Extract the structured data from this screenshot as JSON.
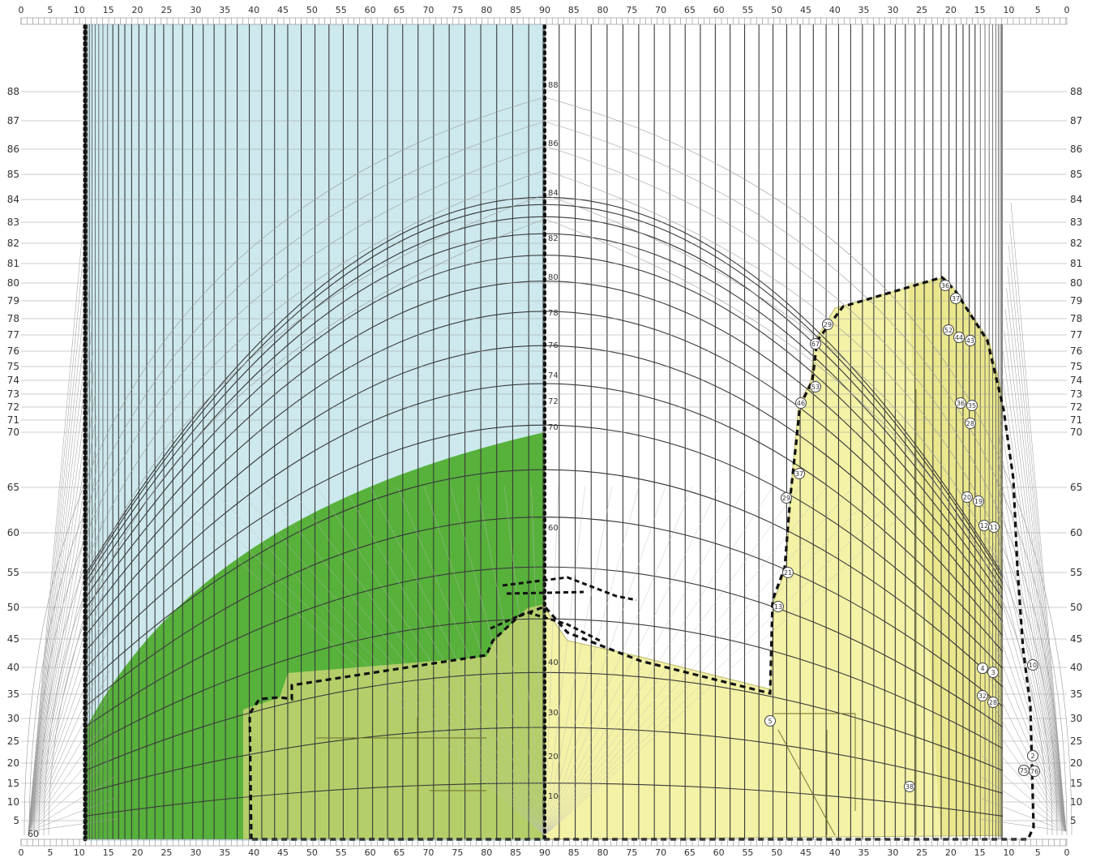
{
  "colors": {
    "background": "#ffffff",
    "sky_cyan": "#cde9ee",
    "green_zone": "#57b13b",
    "olive_zone": "#b4cf6a",
    "yellow_zone": "#f3f2a6",
    "grid_dark": "#3a3a3a",
    "grid_light": "#9a9a9a",
    "marker_stroke": "#444444"
  },
  "scale": {
    "top_ruler_left": [
      "0",
      "5",
      "10",
      "15",
      "20",
      "25",
      "30",
      "35",
      "40",
      "45",
      "50",
      "55",
      "60",
      "65",
      "70",
      "75",
      "80",
      "85",
      "90"
    ],
    "top_ruler_right": [
      "85",
      "80",
      "75",
      "70",
      "65",
      "60",
      "55",
      "50",
      "45",
      "40",
      "35",
      "30",
      "25",
      "20",
      "15",
      "10",
      "5",
      "0"
    ],
    "altitude_labels": [
      "88",
      "87",
      "86",
      "85",
      "84",
      "83",
      "82",
      "81",
      "80",
      "79",
      "78",
      "77",
      "76",
      "75",
      "74",
      "73",
      "72",
      "71",
      "70",
      "65",
      "60",
      "55",
      "50",
      "45",
      "40",
      "35",
      "30",
      "25",
      "20",
      "15",
      "10",
      "5"
    ],
    "center_labels": [
      "88",
      "86",
      "84",
      "82",
      "80",
      "78",
      "76",
      "74",
      "72",
      "70",
      "60",
      "40",
      "30",
      "20",
      "10"
    ],
    "corner_label": "60"
  },
  "markers": [
    {
      "label": "36"
    },
    {
      "label": "37"
    },
    {
      "label": "52"
    },
    {
      "label": "44"
    },
    {
      "label": "43"
    },
    {
      "label": "29"
    },
    {
      "label": "67"
    },
    {
      "label": "53"
    },
    {
      "label": "46"
    },
    {
      "label": "36"
    },
    {
      "label": "35"
    },
    {
      "label": "28"
    },
    {
      "label": "37"
    },
    {
      "label": "29"
    },
    {
      "label": "20"
    },
    {
      "label": "19"
    },
    {
      "label": "12"
    },
    {
      "label": "11"
    },
    {
      "label": "21"
    },
    {
      "label": "13"
    },
    {
      "label": "4"
    },
    {
      "label": "3"
    },
    {
      "label": "10"
    },
    {
      "label": "32"
    },
    {
      "label": "28"
    },
    {
      "label": "5"
    },
    {
      "label": "2"
    },
    {
      "label": "75"
    },
    {
      "label": "76"
    },
    {
      "label": "38"
    }
  ]
}
